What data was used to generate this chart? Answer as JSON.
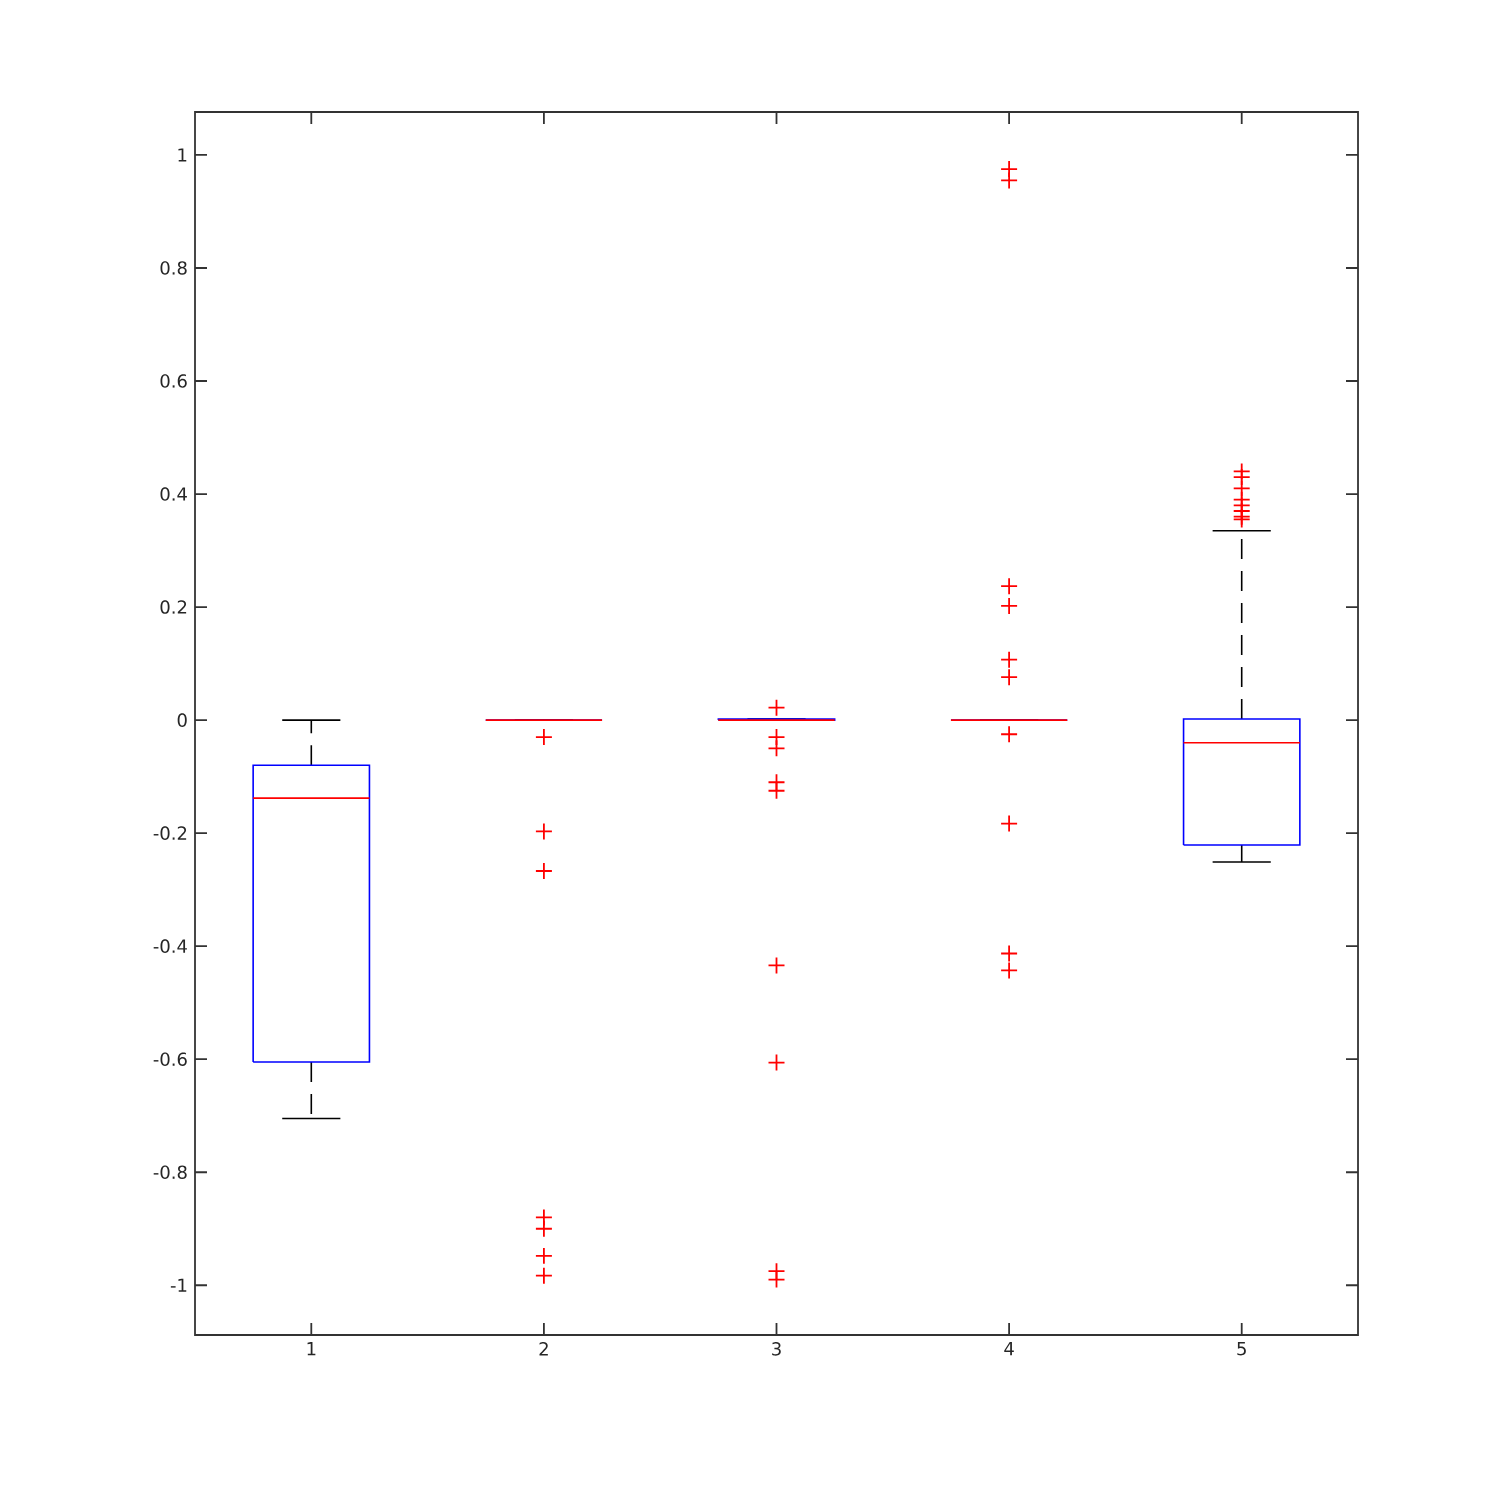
{
  "chart_data": {
    "type": "box",
    "categories": [
      "1",
      "2",
      "3",
      "4",
      "5"
    ],
    "ylim": [
      -1.088,
      1.076
    ],
    "yticks": [
      -1,
      -0.8,
      -0.6,
      -0.4,
      -0.2,
      0,
      0.2,
      0.4,
      0.6,
      0.8,
      1
    ],
    "marker": "cross",
    "grid": false,
    "boxes": [
      {
        "low": -0.705,
        "q1": -0.605,
        "median": -0.138,
        "q3": -0.08,
        "high": 0
      },
      {
        "low": 0,
        "q1": 0,
        "median": 0,
        "q3": 0,
        "high": 0,
        "outliers": [
          -0.03,
          -0.197,
          -0.267,
          -0.88,
          -0.9,
          -0.948,
          -0.983
        ]
      },
      {
        "low": 0,
        "q1": 0,
        "median": 0,
        "q3": 0.002,
        "high": 0.002,
        "outliers": [
          0.022,
          -0.03,
          -0.05,
          -0.11,
          -0.125,
          -0.434,
          -0.606,
          -0.975,
          -0.99
        ]
      },
      {
        "low": 0,
        "q1": 0,
        "median": 0,
        "q3": 0,
        "high": 0,
        "outliers": [
          0.975,
          0.955,
          0.237,
          0.202,
          0.107,
          0.076,
          -0.025,
          -0.183,
          -0.413,
          -0.443
        ]
      },
      {
        "low": -0.251,
        "q1": -0.221,
        "median": -0.04,
        "q3": 0.002,
        "high": 0.335,
        "outliers": [
          0.44,
          0.43,
          0.41,
          0.39,
          0.38,
          0.37,
          0.36,
          0.355
        ]
      }
    ]
  }
}
